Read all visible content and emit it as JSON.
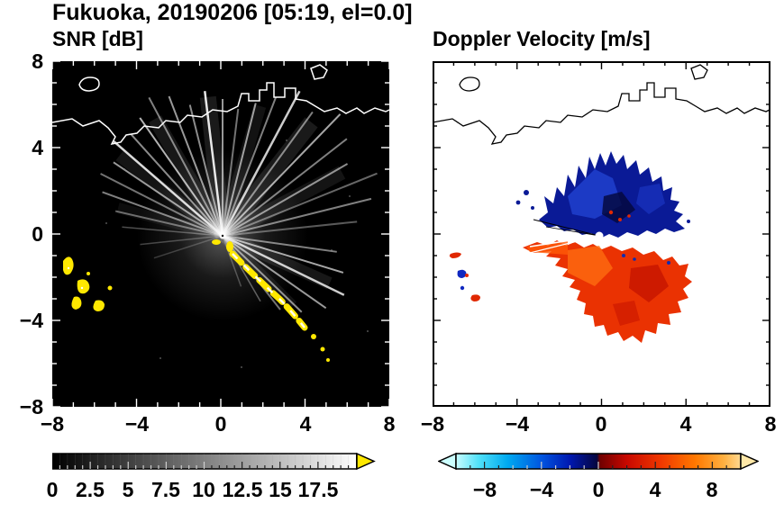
{
  "title": "Fukuoka, 20190206 [05:19, el=0.0]",
  "header": {
    "site": "Fukuoka",
    "date": "20190206",
    "time": "05:19",
    "elevation": "0.0"
  },
  "panels": {
    "left": {
      "title": "SNR [dB]",
      "xticks": [
        "−8",
        "−4",
        "0",
        "4",
        "8"
      ],
      "yticks": [
        "8",
        "4",
        "0",
        "−4",
        "−8"
      ]
    },
    "right": {
      "title": "Doppler Velocity [m/s]",
      "xticks": [
        "−8",
        "−4",
        "0",
        "4",
        "8"
      ]
    }
  },
  "colorbars": {
    "snr": {
      "ticks": [
        "0",
        "2.5",
        "5",
        "7.5",
        "10",
        "12.5",
        "15",
        "17.5"
      ],
      "range": [
        0,
        20
      ],
      "units": "dB",
      "scheme": "black-to-white grayscale",
      "over_color": "#ffe800"
    },
    "velocity": {
      "ticks": [
        "−8",
        "−4",
        "0",
        "4",
        "8"
      ],
      "range": [
        -10,
        10
      ],
      "units": "m/s",
      "scheme": "cyan-blue-darkblue / darkred-red-orange-yellow diverging",
      "under_color": "#ccffff",
      "over_color": "#ffe8a8"
    }
  },
  "chart_data": [
    {
      "type": "heatmap",
      "title": "SNR [dB]",
      "xlim": [
        -8,
        8
      ],
      "ylim": [
        -8,
        8
      ],
      "xticks": [
        -8,
        -4,
        0,
        4,
        8
      ],
      "yticks": [
        -8,
        -4,
        0,
        4,
        8
      ],
      "colorbar": {
        "label_values": [
          0,
          2.5,
          5,
          7.5,
          10,
          12.5,
          15,
          17.5
        ],
        "range": [
          0,
          20
        ],
        "colormap": "grayscale",
        "over_arrow_color": "#ffe800"
      },
      "description": "PPI radar scan centered at origin on black background; narrow white radial beams of enhanced SNR extend 3-8 km in most azimuths (densest toward NW and NE); bright yellow high-SNR clutter band arcs from about (0.3,-0.6) to (3.6,-4.2); isolated yellow clutter patches near (-7.5,-1.2) to (-5.5,-3.8); coastline drawn as white contour across the top (y of 3 to 6.5)"
    },
    {
      "type": "heatmap",
      "title": "Doppler Velocity [m/s]",
      "xlim": [
        -8,
        8
      ],
      "ylim": [
        -8,
        8
      ],
      "xticks": [
        -8,
        -4,
        0,
        4,
        8
      ],
      "colorbar": {
        "label_values": [
          -8,
          -4,
          0,
          4,
          8
        ],
        "range": [
          -10,
          10
        ],
        "colormap": "diverging cyan-blue-darkblue to darkred-red-orange-yellow"
      },
      "description": "Doppler velocity field on white background: negative velocities (dark blue, about -2 to -8 m/s, toward radar) form a jagged fan north/northeast of the origin up to y of +4; positive velocities (red-orange, about +2 to +8 m/s) fill a broad lobe south and east of the origin down to y of -4 plus a narrow wedge pointing west; small isolated echo patches near (-7.5,-1) to (-6,-3.5); coastline drawn as black contour"
    }
  ]
}
